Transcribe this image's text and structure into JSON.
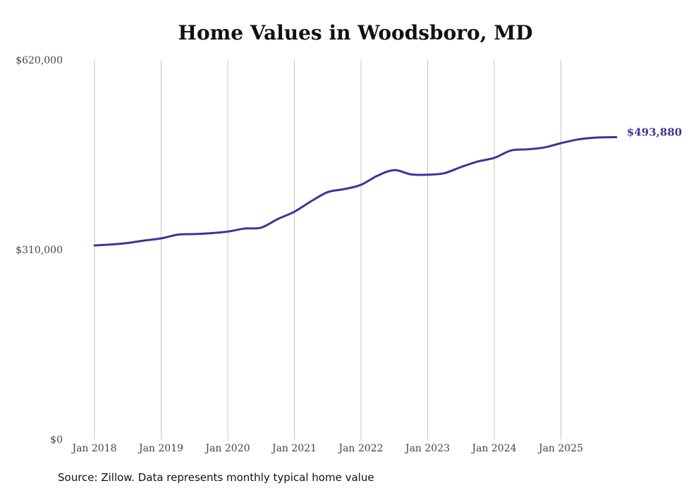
{
  "chart_data": {
    "type": "line",
    "title": "Home Values in Woodsboro, MD",
    "xlabel": "",
    "ylabel": "",
    "ylim": [
      0,
      620000
    ],
    "xlim": [
      2017.9,
      2025.9
    ],
    "y_ticks": [
      0,
      310000,
      620000
    ],
    "y_tick_labels": [
      "$0",
      "$310,000",
      "$620,000"
    ],
    "x_ticks": [
      2018,
      2019,
      2020,
      2021,
      2022,
      2023,
      2024,
      2025
    ],
    "x_tick_labels": [
      "Jan 2018",
      "Jan 2019",
      "Jan 2020",
      "Jan 2021",
      "Jan 2022",
      "Jan 2023",
      "Jan 2024",
      "Jan 2025"
    ],
    "grid": "vertical",
    "color": "#3a3699",
    "end_label": "$493,880",
    "series": [
      {
        "name": "Typical home value",
        "x": [
          2018.0,
          2018.25,
          2018.5,
          2018.75,
          2019.0,
          2019.25,
          2019.5,
          2019.75,
          2020.0,
          2020.25,
          2020.5,
          2020.75,
          2021.0,
          2021.25,
          2021.5,
          2021.75,
          2022.0,
          2022.25,
          2022.5,
          2022.75,
          2023.0,
          2023.25,
          2023.5,
          2023.75,
          2024.0,
          2024.25,
          2024.5,
          2024.75,
          2025.0,
          2025.25,
          2025.5,
          2025.83
        ],
        "values": [
          316900,
          318500,
          321000,
          325000,
          328400,
          334500,
          335500,
          337000,
          339500,
          344500,
          346000,
          360000,
          372000,
          389000,
          404000,
          409000,
          416000,
          431000,
          440000,
          433000,
          432500,
          435000,
          445000,
          454000,
          460000,
          472000,
          474000,
          477000,
          484000,
          490000,
          493000,
          493880
        ]
      }
    ]
  },
  "footer": {
    "source": "Source: Zillow. Data represents monthly typical home value"
  }
}
